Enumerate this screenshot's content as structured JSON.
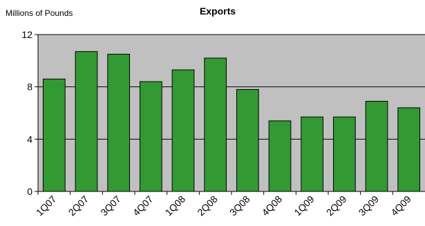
{
  "chart_data": {
    "type": "bar",
    "title": "Exports",
    "ylabel": "Millions of Pounds",
    "xlabel": "",
    "categories": [
      "1Q07",
      "2Q07",
      "3Q07",
      "4Q07",
      "1Q08",
      "2Q08",
      "3Q08",
      "4Q08",
      "1Q09",
      "2Q09",
      "3Q09",
      "4Q09"
    ],
    "values": [
      8.6,
      10.7,
      10.5,
      8.4,
      9.3,
      10.2,
      7.8,
      5.4,
      5.7,
      5.7,
      6.9,
      6.4
    ],
    "ylim": [
      0,
      12
    ],
    "yticks": [
      0,
      4,
      8,
      12
    ],
    "grid": true,
    "colors": {
      "bar": "#339933",
      "bar_edge": "#000000",
      "plot_bg": "#c0c0c0",
      "gridline": "#000000"
    }
  }
}
